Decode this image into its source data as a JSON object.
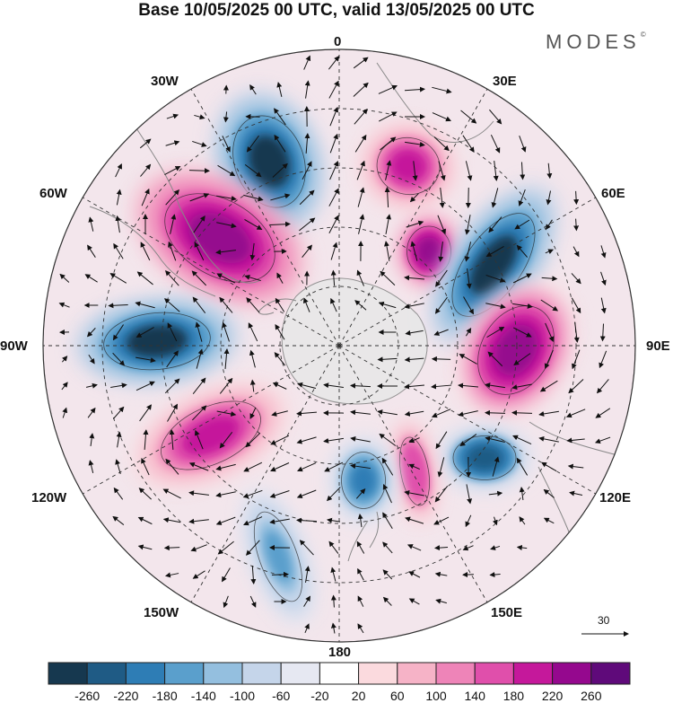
{
  "title": "Base 10/05/2025 00 UTC, valid 13/05/2025 00 UTC",
  "brand": "MODES",
  "brand_mark": "©",
  "longitude_labels": {
    "n0": "0",
    "e30": "30E",
    "e60": "60E",
    "e90": "90E",
    "e120": "120E",
    "e150": "150E",
    "s180": "180",
    "w150": "150W",
    "w120": "120W",
    "w90": "90W",
    "w60": "60W",
    "w30": "30W"
  },
  "vector_scale_label": "30",
  "colorbar": {
    "colors": [
      "#16384f",
      "#1f5b85",
      "#2e7db5",
      "#5a9fcc",
      "#94bfdf",
      "#c5d5ea",
      "#e6e8f2",
      "#ffffff",
      "#fbdade",
      "#f6b3c7",
      "#ee84b8",
      "#e04fab",
      "#c5189b",
      "#95088e",
      "#5f0a7a"
    ],
    "labels": [
      "-260",
      "-220",
      "-180",
      "-140",
      "-100",
      "-60",
      "-20",
      "20",
      "60",
      "100",
      "140",
      "180",
      "220",
      "260"
    ]
  },
  "anomaly_centers": [
    {
      "sign": "negative",
      "lon": "30W",
      "strength": -260
    },
    {
      "sign": "positive",
      "lon": "5E",
      "strength": 200
    },
    {
      "sign": "positive",
      "lon": "60W",
      "strength": 260
    },
    {
      "sign": "positive",
      "lon": "35E",
      "strength": 240
    },
    {
      "sign": "negative",
      "lon": "55E",
      "strength": -260
    },
    {
      "sign": "negative",
      "lon": "90W",
      "strength": -260
    },
    {
      "sign": "positive",
      "lon": "85E",
      "strength": 240
    },
    {
      "sign": "positive",
      "lon": "115W",
      "strength": 200
    },
    {
      "sign": "negative",
      "lon": "115E",
      "strength": -220
    },
    {
      "sign": "positive",
      "lon": "160E",
      "strength": 180
    },
    {
      "sign": "negative",
      "lon": "170E",
      "strength": -180
    },
    {
      "sign": "negative",
      "lon": "150W",
      "strength": -140
    }
  ]
}
